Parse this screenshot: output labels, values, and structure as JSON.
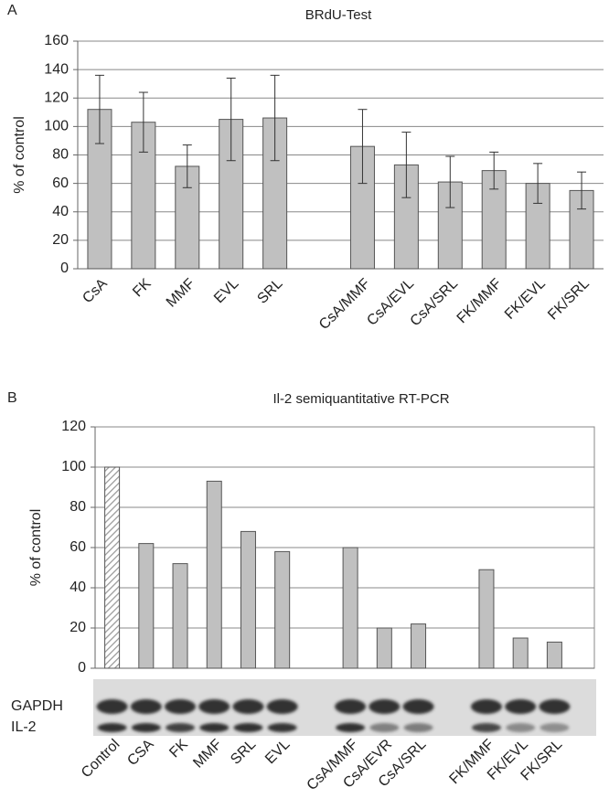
{
  "chart_data": [
    {
      "type": "bar",
      "panel": "A",
      "title": "BRdU-Test",
      "y_label": "% of control",
      "categories": [
        "CsA",
        "FK",
        "MMF",
        "EVL",
        "SRL",
        null,
        "CsA/MMF",
        "CsA/EVL",
        "CsA/SRL",
        "FK/MMF",
        "FK/EVL",
        "FK/SRL"
      ],
      "values": [
        112,
        103,
        72,
        105,
        106,
        null,
        86,
        73,
        61,
        69,
        60,
        55
      ],
      "errors": [
        24,
        21,
        15,
        29,
        30,
        null,
        26,
        23,
        18,
        13,
        14,
        13
      ],
      "color": "#c0c0c0",
      "ylim": [
        0,
        160
      ],
      "yticks": [
        0,
        20,
        40,
        60,
        80,
        100,
        120,
        140,
        160
      ],
      "grid": true,
      "frame": false
    },
    {
      "type": "bar",
      "panel": "B",
      "title": "Il-2 semiquantitative RT-PCR",
      "y_label": "% of control",
      "categories": [
        "Control",
        "CSA",
        "FK",
        "MMF",
        "SRL",
        "EVL",
        null,
        "CsA/MMF",
        "CsA/EVR",
        "CsA/SRL",
        null,
        "FK/MMF",
        "FK/EVL",
        "FK/SRL"
      ],
      "values": [
        100,
        62,
        52,
        93,
        68,
        58,
        null,
        60,
        20,
        22,
        null,
        49,
        15,
        13
      ],
      "hatch": [
        true,
        false,
        false,
        false,
        false,
        false,
        false,
        false,
        false,
        false,
        false,
        false,
        false,
        false
      ],
      "color": "#c0c0c0",
      "ylim": [
        0,
        120
      ],
      "yticks": [
        0,
        20,
        40,
        60,
        80,
        100,
        120
      ],
      "grid": true,
      "frame": true,
      "gel_labels": [
        "GAPDH",
        "IL-2"
      ]
    }
  ]
}
